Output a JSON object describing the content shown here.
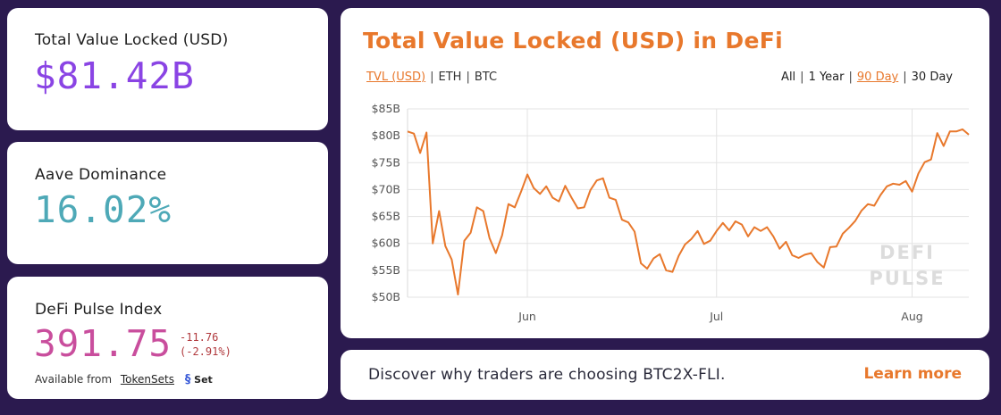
{
  "tvl_card": {
    "label": "Total Value Locked (USD)",
    "value": "$81.42B"
  },
  "aave_card": {
    "label": "Aave Dominance",
    "value": "16.02%"
  },
  "dpi_card": {
    "label": "DeFi Pulse Index",
    "value": "391.75",
    "change_abs": "-11.76",
    "change_pct": "(-2.91%)",
    "available_from": "Available from",
    "link_label": "TokenSets",
    "set_logo_text": "Set"
  },
  "chart_card": {
    "title": "Total Value Locked (USD) in DeFi",
    "toggles": [
      "TVL (USD)",
      "ETH",
      "BTC"
    ],
    "active_toggle": "TVL (USD)",
    "ranges": [
      "All",
      "1 Year",
      "90 Day",
      "30 Day"
    ],
    "active_range": "90 Day",
    "watermark_line1": "DEFI",
    "watermark_line2": "PULSE"
  },
  "promo": {
    "text": "Discover why traders are choosing BTC2X-FLI.",
    "link": "Learn more"
  },
  "colors": {
    "background": "#2b1a4f",
    "accent": "#e8782c",
    "tvl": "#8a44e4",
    "aave": "#4ea9b7",
    "dpi": "#c94e9d",
    "negative": "#b0383c"
  },
  "chart_data": {
    "type": "line",
    "title": "Total Value Locked (USD) in DeFi",
    "ylim": [
      50,
      85
    ],
    "yticks": [
      50,
      55,
      60,
      65,
      70,
      75,
      80,
      85
    ],
    "ytick_labels": [
      "$50B",
      "$55B",
      "$60B",
      "$65B",
      "$70B",
      "$75B",
      "$80B",
      "$85B"
    ],
    "x_ticks": [
      {
        "label": "Jun",
        "x": 19
      },
      {
        "label": "Jul",
        "x": 49
      },
      {
        "label": "Aug",
        "x": 80
      }
    ],
    "xlim": [
      0,
      89
    ],
    "grid": true,
    "series": [
      {
        "values": [
          80.8,
          80.4,
          76.8,
          80.6,
          60.0,
          66.0,
          59.5,
          57.0,
          50.5,
          60.5,
          62.0,
          66.7,
          66.0,
          61.0,
          58.2,
          61.5,
          67.3,
          66.7,
          69.6,
          72.8,
          70.3,
          69.2,
          70.6,
          68.5,
          67.8,
          70.7,
          68.5,
          66.5,
          66.7,
          69.9,
          71.7,
          72.1,
          68.5,
          68.1,
          64.4,
          63.9,
          62.2,
          56.3,
          55.3,
          57.2,
          58.0,
          55.0,
          54.7,
          57.7,
          59.8,
          60.8,
          62.3,
          59.9,
          60.5,
          62.3,
          63.8,
          62.4,
          64.1,
          63.5,
          61.3,
          63.0,
          62.3,
          63.0,
          61.3,
          59.0,
          60.3,
          57.8,
          57.3,
          57.9,
          58.2,
          56.5,
          55.5,
          59.3,
          59.4,
          61.8,
          62.9,
          64.2,
          66.1,
          67.3,
          67.0,
          69.0,
          70.6,
          71.1,
          70.9,
          71.6,
          69.6,
          73.0,
          75.1,
          75.6,
          80.5,
          78.1,
          80.8,
          80.8,
          81.2,
          80.2
        ]
      }
    ]
  }
}
